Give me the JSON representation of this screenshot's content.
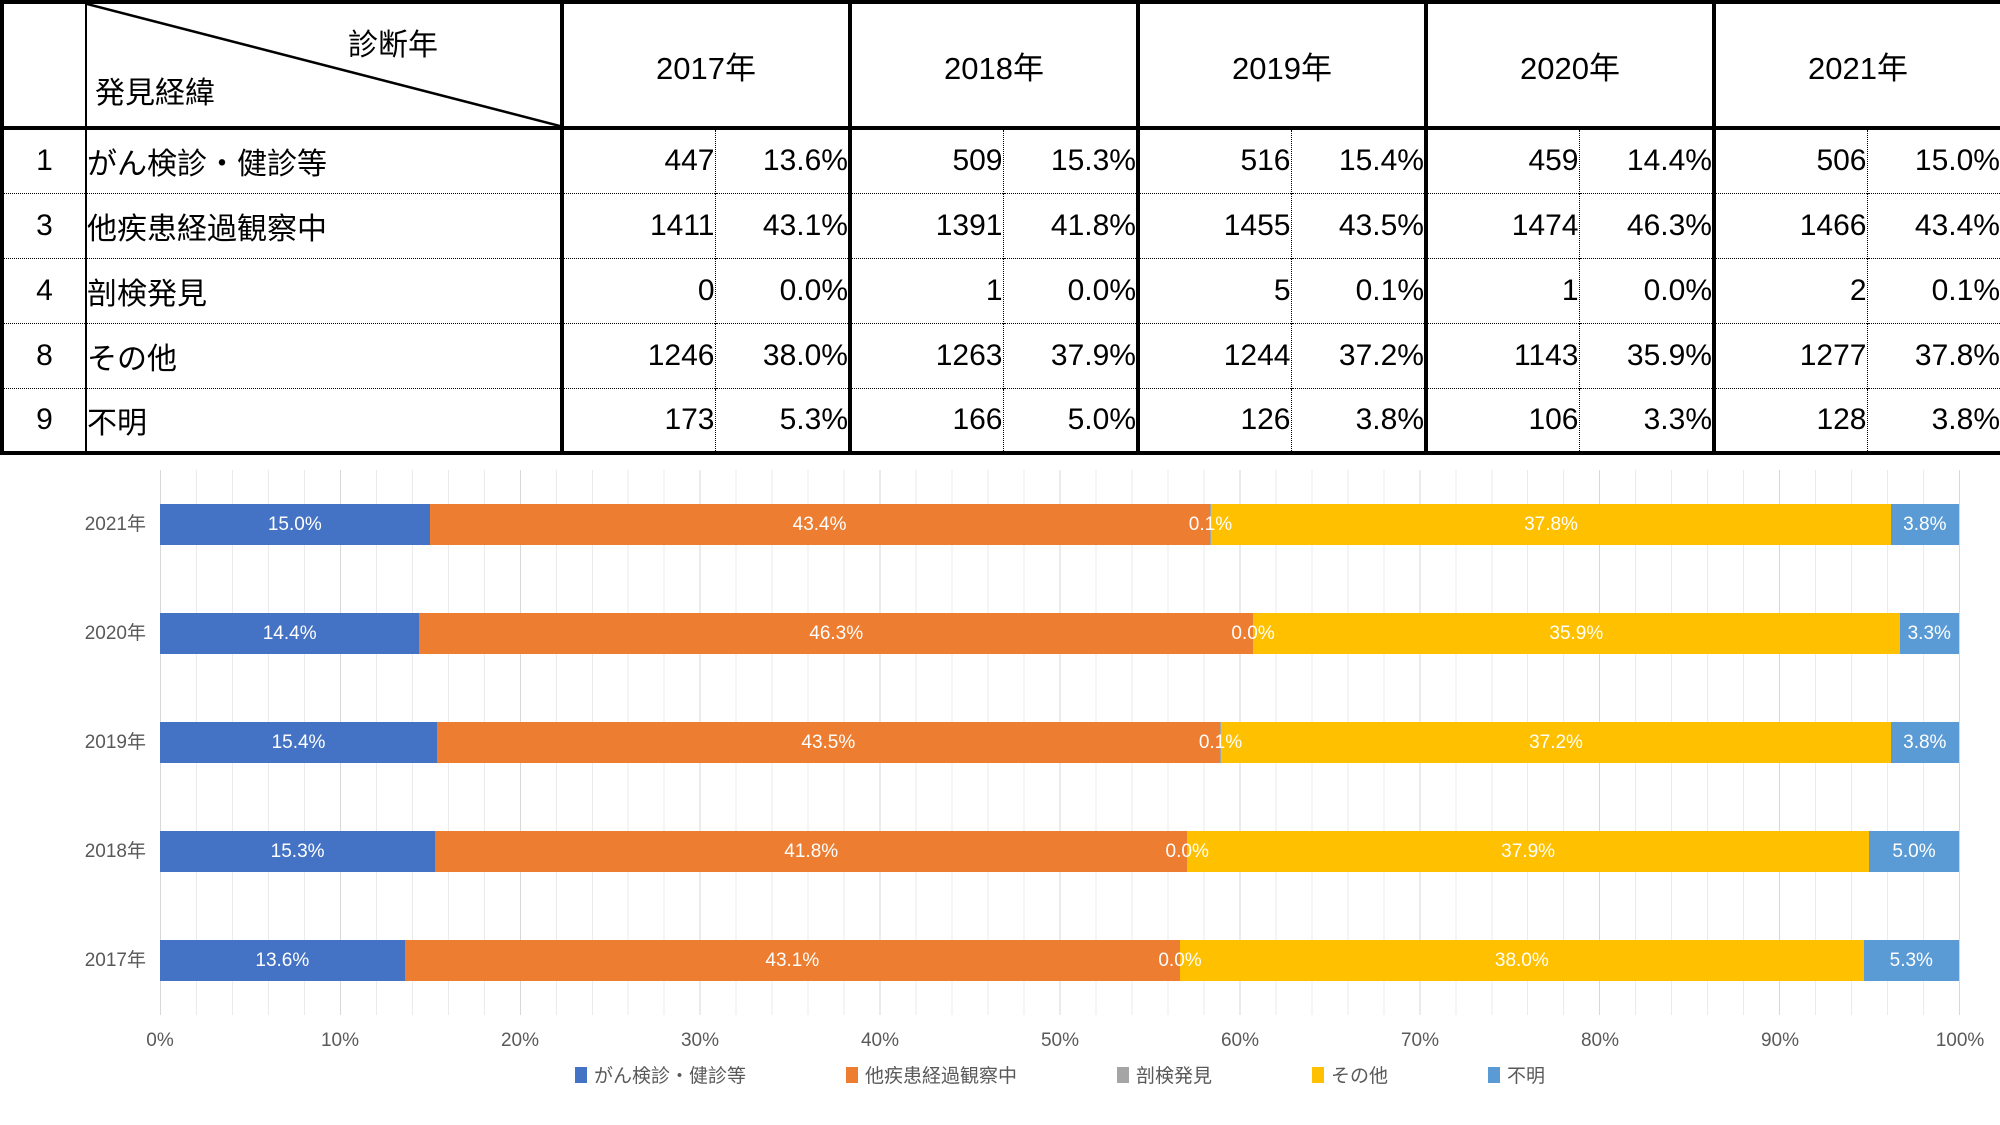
{
  "table": {
    "corner_top_right": "診断年",
    "corner_bottom_left": "発見経緯",
    "years": [
      "2017年",
      "2018年",
      "2019年",
      "2020年",
      "2021年"
    ],
    "rows": [
      {
        "num": "1",
        "label": "がん検診・健診等",
        "values": [
          [
            "447",
            "13.6%"
          ],
          [
            "509",
            "15.3%"
          ],
          [
            "516",
            "15.4%"
          ],
          [
            "459",
            "14.4%"
          ],
          [
            "506",
            "15.0%"
          ]
        ]
      },
      {
        "num": "3",
        "label": "他疾患経過観察中",
        "values": [
          [
            "1411",
            "43.1%"
          ],
          [
            "1391",
            "41.8%"
          ],
          [
            "1455",
            "43.5%"
          ],
          [
            "1474",
            "46.3%"
          ],
          [
            "1466",
            "43.4%"
          ]
        ]
      },
      {
        "num": "4",
        "label": "剖検発見",
        "values": [
          [
            "0",
            "0.0%"
          ],
          [
            "1",
            "0.0%"
          ],
          [
            "5",
            "0.1%"
          ],
          [
            "1",
            "0.0%"
          ],
          [
            "2",
            "0.1%"
          ]
        ]
      },
      {
        "num": "8",
        "label": "その他",
        "values": [
          [
            "1246",
            "38.0%"
          ],
          [
            "1263",
            "37.9%"
          ],
          [
            "1244",
            "37.2%"
          ],
          [
            "1143",
            "35.9%"
          ],
          [
            "1277",
            "37.8%"
          ]
        ]
      },
      {
        "num": "9",
        "label": "不明",
        "values": [
          [
            "173",
            "5.3%"
          ],
          [
            "166",
            "5.0%"
          ],
          [
            "126",
            "3.8%"
          ],
          [
            "106",
            "3.3%"
          ],
          [
            "128",
            "3.8%"
          ]
        ]
      }
    ]
  },
  "chart_data": {
    "type": "bar",
    "variant": "100pct-stacked-horizontal",
    "categories": [
      "2021年",
      "2020年",
      "2019年",
      "2018年",
      "2017年"
    ],
    "series": [
      {
        "name": "がん検診・健診等",
        "color": "#4472C4",
        "values": [
          15.0,
          14.4,
          15.4,
          15.3,
          13.6
        ]
      },
      {
        "name": "他疾患経過観察中",
        "color": "#ED7D31",
        "values": [
          43.4,
          46.3,
          43.5,
          41.8,
          43.1
        ]
      },
      {
        "name": "剖検発見",
        "color": "#A5A5A5",
        "values": [
          0.1,
          0.0,
          0.1,
          0.0,
          0.0
        ]
      },
      {
        "name": "その他",
        "color": "#FFC000",
        "values": [
          37.8,
          35.9,
          37.2,
          37.9,
          38.0
        ]
      },
      {
        "name": "不明",
        "color": "#5B9BD5",
        "values": [
          3.8,
          3.3,
          3.8,
          5.0,
          5.3
        ]
      }
    ],
    "x_ticks": [
      "0%",
      "10%",
      "20%",
      "30%",
      "40%",
      "50%",
      "60%",
      "70%",
      "80%",
      "90%",
      "100%"
    ],
    "xlim": [
      0,
      100
    ],
    "gridlines": {
      "minor_step_pct": 2,
      "major_step_pct": 10
    },
    "data_label_color": "#FFFFFF",
    "axis_text_color": "#595959",
    "legend_position": "bottom"
  }
}
